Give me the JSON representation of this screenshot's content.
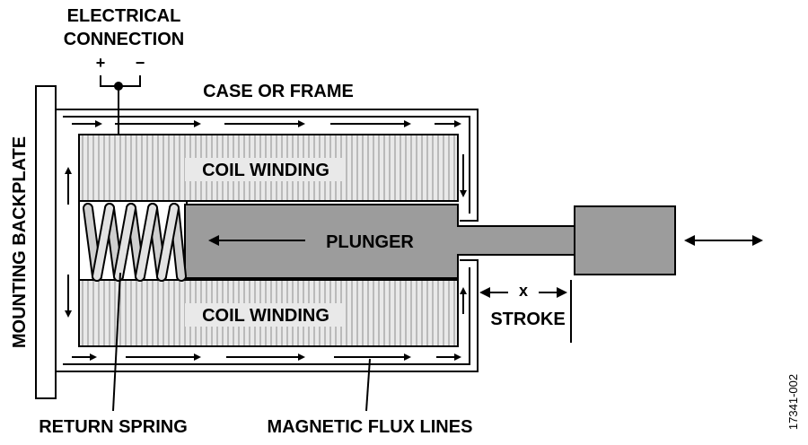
{
  "labels": {
    "electrical_line1": "ELECTRICAL",
    "electrical_line2": "CONNECTION",
    "plus": "+",
    "minus": "−",
    "case": "CASE OR FRAME",
    "coil_top": "COIL WINDING",
    "coil_bottom": "COIL WINDING",
    "plunger": "PLUNGER",
    "stroke_x": "x",
    "stroke": "STROKE",
    "backplate": "MOUNTING BACKPLATE",
    "return_spring": "RETURN SPRING",
    "flux_lines": "MAGNETIC FLUX LINES",
    "figure_id": "17341-002"
  },
  "colors": {
    "coil": "#e9e9e9",
    "coil_hatch": "#8c8c8c",
    "plunger": "#9c9c9c",
    "spring": "#cfcfcf",
    "line": "#000000",
    "background": "#ffffff"
  }
}
